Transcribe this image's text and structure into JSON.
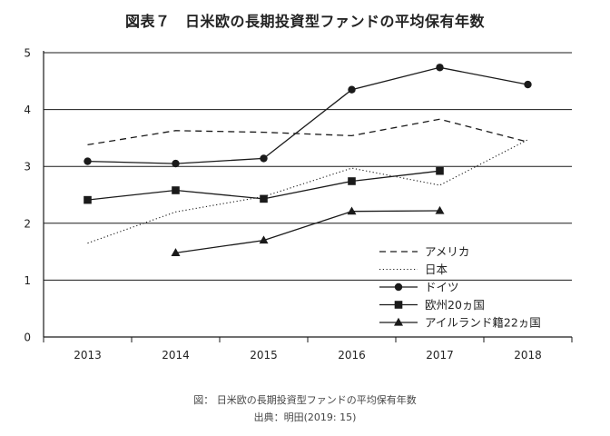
{
  "chart_data": {
    "type": "line",
    "title": "図表７　日米欧の長期投資型ファンドの平均保有年数",
    "x": [
      2013,
      2014,
      2015,
      2016,
      2017,
      2018
    ],
    "x_tick_labels": [
      "2013",
      "2014",
      "2015",
      "2016",
      "2017",
      "2018"
    ],
    "ylim": [
      0,
      5
    ],
    "y_ticks": [
      0,
      1,
      2,
      3,
      4,
      5
    ],
    "grid": "horizontal",
    "legend_position": "bottom-right",
    "series": [
      {
        "name": "アメリカ",
        "style": "dashed",
        "marker": "none",
        "values": [
          3.38,
          3.63,
          3.6,
          3.54,
          3.83,
          3.43
        ]
      },
      {
        "name": "日本",
        "style": "dotted",
        "marker": "none",
        "values": [
          1.65,
          2.2,
          2.47,
          2.97,
          2.67,
          3.47
        ]
      },
      {
        "name": "ドイツ",
        "style": "solid",
        "marker": "circle",
        "values": [
          3.09,
          3.05,
          3.14,
          4.35,
          4.74,
          4.44
        ]
      },
      {
        "name": "欧州20ヵ国",
        "style": "solid",
        "marker": "square",
        "values": [
          2.41,
          2.58,
          2.43,
          2.74,
          2.92,
          null
        ]
      },
      {
        "name": "アイルランド籍22ヵ国",
        "style": "solid",
        "marker": "triangle",
        "values": [
          null,
          1.48,
          1.7,
          2.21,
          2.22,
          null
        ]
      }
    ]
  },
  "caption": "図： 日米欧の長期投資型ファンドの平均保有年数",
  "source": "出典：明田(2019: 15)",
  "colors": {
    "line": "#1a1a1a",
    "grid": "#1a1a1a",
    "text": "#222222"
  }
}
